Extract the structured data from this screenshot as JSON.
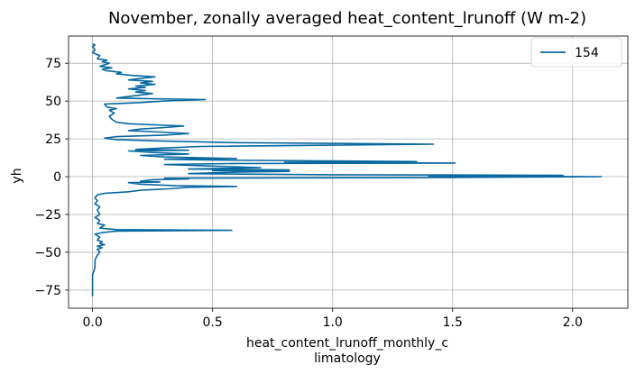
{
  "chart_data": {
    "type": "line",
    "title": "November, zonally averaged heat_content_lrunoff (W m-2)",
    "xlabel_lines": [
      "heat_content_lrunoff_monthly_c",
      "limatology"
    ],
    "ylabel": "yh",
    "xlim": [
      -0.1,
      2.23
    ],
    "ylim": [
      -87,
      93
    ],
    "x_ticks": [
      {
        "value": 0.0,
        "label": "0.0"
      },
      {
        "value": 0.5,
        "label": "0.5"
      },
      {
        "value": 1.0,
        "label": "1.0"
      },
      {
        "value": 1.5,
        "label": "1.5"
      },
      {
        "value": 2.0,
        "label": "2.0"
      }
    ],
    "y_ticks": [
      {
        "value": 75,
        "label": "75"
      },
      {
        "value": 50,
        "label": "50"
      },
      {
        "value": 25,
        "label": "25"
      },
      {
        "value": 0,
        "label": "0"
      },
      {
        "value": -25,
        "label": "−25"
      },
      {
        "value": -50,
        "label": "−50"
      },
      {
        "value": -75,
        "label": "−75"
      }
    ],
    "grid": true,
    "legend": {
      "position": "top-right"
    },
    "series": [
      {
        "name": "154",
        "color": "#0868a0",
        "points": [
          {
            "x": 0.0,
            "y": -79
          },
          {
            "x": 0.0,
            "y": -72
          },
          {
            "x": 0.0,
            "y": -65
          },
          {
            "x": 0.01,
            "y": -60
          },
          {
            "x": 0.01,
            "y": -55
          },
          {
            "x": 0.02,
            "y": -52
          },
          {
            "x": 0.03,
            "y": -50
          },
          {
            "x": 0.02,
            "y": -48
          },
          {
            "x": 0.04,
            "y": -47
          },
          {
            "x": 0.02,
            "y": -46
          },
          {
            "x": 0.05,
            "y": -45
          },
          {
            "x": 0.03,
            "y": -44
          },
          {
            "x": 0.04,
            "y": -43
          },
          {
            "x": 0.02,
            "y": -42
          },
          {
            "x": 0.03,
            "y": -40
          },
          {
            "x": 0.01,
            "y": -38
          },
          {
            "x": 0.04,
            "y": -37
          },
          {
            "x": 0.1,
            "y": -36
          },
          {
            "x": 0.58,
            "y": -35.5
          },
          {
            "x": 0.1,
            "y": -35
          },
          {
            "x": 0.03,
            "y": -34
          },
          {
            "x": 0.05,
            "y": -32
          },
          {
            "x": 0.02,
            "y": -31
          },
          {
            "x": 0.03,
            "y": -29
          },
          {
            "x": 0.01,
            "y": -27
          },
          {
            "x": 0.03,
            "y": -25
          },
          {
            "x": 0.02,
            "y": -22
          },
          {
            "x": 0.03,
            "y": -20
          },
          {
            "x": 0.01,
            "y": -18
          },
          {
            "x": 0.02,
            "y": -16
          },
          {
            "x": 0.01,
            "y": -14
          },
          {
            "x": 0.02,
            "y": -12
          },
          {
            "x": 0.05,
            "y": -11
          },
          {
            "x": 0.15,
            "y": -10
          },
          {
            "x": 0.2,
            "y": -9
          },
          {
            "x": 0.32,
            "y": -8
          },
          {
            "x": 0.4,
            "y": -7
          },
          {
            "x": 0.6,
            "y": -6.5
          },
          {
            "x": 0.35,
            "y": -6
          },
          {
            "x": 0.2,
            "y": -5
          },
          {
            "x": 0.15,
            "y": -4
          },
          {
            "x": 0.28,
            "y": -3.5
          },
          {
            "x": 0.2,
            "y": -3
          },
          {
            "x": 0.25,
            "y": -2
          },
          {
            "x": 0.4,
            "y": -1.5
          },
          {
            "x": 0.3,
            "y": -1
          },
          {
            "x": 1.5,
            "y": -0.5
          },
          {
            "x": 2.12,
            "y": 0
          },
          {
            "x": 1.4,
            "y": 0.5
          },
          {
            "x": 1.96,
            "y": 0.9
          },
          {
            "x": 1.0,
            "y": 1.3
          },
          {
            "x": 0.4,
            "y": 2
          },
          {
            "x": 0.6,
            "y": 3
          },
          {
            "x": 0.82,
            "y": 3.5
          },
          {
            "x": 0.5,
            "y": 4
          },
          {
            "x": 0.82,
            "y": 4.5
          },
          {
            "x": 0.4,
            "y": 5
          },
          {
            "x": 0.7,
            "y": 6
          },
          {
            "x": 0.5,
            "y": 7
          },
          {
            "x": 0.3,
            "y": 8
          },
          {
            "x": 0.6,
            "y": 8.7
          },
          {
            "x": 1.51,
            "y": 9
          },
          {
            "x": 0.8,
            "y": 9.5
          },
          {
            "x": 1.35,
            "y": 10
          },
          {
            "x": 0.5,
            "y": 11
          },
          {
            "x": 0.3,
            "y": 11.5
          },
          {
            "x": 0.6,
            "y": 12
          },
          {
            "x": 0.3,
            "y": 13
          },
          {
            "x": 0.2,
            "y": 14
          },
          {
            "x": 0.4,
            "y": 15
          },
          {
            "x": 0.25,
            "y": 16
          },
          {
            "x": 0.15,
            "y": 17
          },
          {
            "x": 0.4,
            "y": 17.5
          },
          {
            "x": 0.18,
            "y": 18
          },
          {
            "x": 0.3,
            "y": 19
          },
          {
            "x": 0.45,
            "y": 20
          },
          {
            "x": 1.42,
            "y": 21.5
          },
          {
            "x": 0.6,
            "y": 22.5
          },
          {
            "x": 0.3,
            "y": 23.5
          },
          {
            "x": 0.1,
            "y": 24.5
          },
          {
            "x": 0.05,
            "y": 25.5
          },
          {
            "x": 0.1,
            "y": 26.5
          },
          {
            "x": 0.3,
            "y": 27.5
          },
          {
            "x": 0.4,
            "y": 28.5
          },
          {
            "x": 0.28,
            "y": 29.5
          },
          {
            "x": 0.15,
            "y": 30.5
          },
          {
            "x": 0.2,
            "y": 31.5
          },
          {
            "x": 0.3,
            "y": 32.5
          },
          {
            "x": 0.38,
            "y": 33.5
          },
          {
            "x": 0.3,
            "y": 34
          },
          {
            "x": 0.15,
            "y": 35
          },
          {
            "x": 0.1,
            "y": 36
          },
          {
            "x": 0.08,
            "y": 38
          },
          {
            "x": 0.07,
            "y": 40
          },
          {
            "x": 0.09,
            "y": 42
          },
          {
            "x": 0.07,
            "y": 44
          },
          {
            "x": 0.1,
            "y": 45
          },
          {
            "x": 0.06,
            "y": 46
          },
          {
            "x": 0.05,
            "y": 48
          },
          {
            "x": 0.2,
            "y": 49
          },
          {
            "x": 0.3,
            "y": 50
          },
          {
            "x": 0.47,
            "y": 51
          },
          {
            "x": 0.25,
            "y": 51.5
          },
          {
            "x": 0.1,
            "y": 52
          },
          {
            "x": 0.15,
            "y": 53
          },
          {
            "x": 0.2,
            "y": 54
          },
          {
            "x": 0.25,
            "y": 55
          },
          {
            "x": 0.18,
            "y": 56
          },
          {
            "x": 0.22,
            "y": 57
          },
          {
            "x": 0.15,
            "y": 58
          },
          {
            "x": 0.22,
            "y": 59
          },
          {
            "x": 0.18,
            "y": 60
          },
          {
            "x": 0.26,
            "y": 61
          },
          {
            "x": 0.2,
            "y": 62
          },
          {
            "x": 0.25,
            "y": 63
          },
          {
            "x": 0.15,
            "y": 64
          },
          {
            "x": 0.2,
            "y": 65
          },
          {
            "x": 0.26,
            "y": 66
          },
          {
            "x": 0.16,
            "y": 67
          },
          {
            "x": 0.1,
            "y": 68
          },
          {
            "x": 0.12,
            "y": 69
          },
          {
            "x": 0.06,
            "y": 70
          },
          {
            "x": 0.04,
            "y": 71
          },
          {
            "x": 0.08,
            "y": 72
          },
          {
            "x": 0.03,
            "y": 73
          },
          {
            "x": 0.05,
            "y": 74
          },
          {
            "x": 0.07,
            "y": 75
          },
          {
            "x": 0.04,
            "y": 76
          },
          {
            "x": 0.06,
            "y": 77
          },
          {
            "x": 0.02,
            "y": 78
          },
          {
            "x": 0.03,
            "y": 80
          },
          {
            "x": 0.0,
            "y": 82
          },
          {
            "x": 0.01,
            "y": 84
          },
          {
            "x": 0.0,
            "y": 86
          },
          {
            "x": 0.01,
            "y": 87
          },
          {
            "x": 0.0,
            "y": 88
          }
        ]
      }
    ]
  }
}
